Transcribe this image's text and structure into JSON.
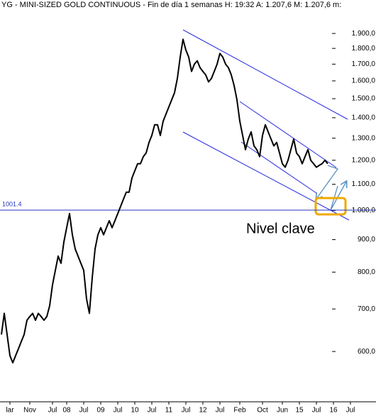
{
  "chart_data": {
    "type": "line",
    "title": "YG - MINI-SIZED GOLD CONTINUOUS - Fin de día 1 semanas H: 19:32 A: 1.207,6 M: 1.207,6 m:",
    "annotation": "Nivel clave",
    "log_scale": true,
    "hline": 1001.4,
    "categories": [
      null,
      null,
      null,
      "lar",
      null,
      null,
      null,
      null,
      null,
      null,
      "Nov",
      null,
      null,
      null,
      null,
      null,
      null,
      null,
      "Jul",
      null,
      null,
      null,
      null,
      "08",
      null,
      null,
      null,
      null,
      null,
      "Jul",
      null,
      null,
      null,
      null,
      null,
      "09",
      null,
      null,
      null,
      null,
      null,
      "Jul",
      null,
      null,
      null,
      null,
      null,
      "10",
      null,
      null,
      null,
      null,
      null,
      "Jul",
      null,
      null,
      null,
      null,
      null,
      "11",
      null,
      null,
      null,
      null,
      null,
      "Jul",
      null,
      null,
      null,
      null,
      null,
      "12",
      null,
      null,
      null,
      null,
      null,
      "Jul",
      null,
      null,
      null,
      null,
      null,
      null,
      "Feb",
      null,
      null,
      null,
      null,
      null,
      null,
      null,
      "Oct",
      null,
      null,
      null,
      null,
      null,
      null,
      "Jun",
      null,
      null,
      null,
      null,
      null,
      "15",
      null,
      null,
      null,
      null,
      null,
      "Jul",
      null,
      null,
      null,
      null,
      null,
      "16",
      null,
      null,
      null,
      null,
      null,
      "Jul",
      null
    ],
    "series": [
      {
        "color": "#000000",
        "values": [
          638,
          689,
          638,
          591,
          576,
          591,
          606,
          622,
          638,
          672,
          681,
          689,
          672,
          689,
          681,
          672,
          681,
          708,
          764,
          805,
          848,
          826,
          892,
          940,
          989,
          916,
          870,
          848,
          826,
          805,
          726,
          689,
          784,
          870,
          916,
          940,
          916,
          940,
          964,
          940,
          964,
          989,
          1015,
          1042,
          1069,
          1069,
          1125,
          1155,
          1185,
          1185,
          1216,
          1232,
          1280,
          1313,
          1365,
          1365,
          1313,
          1383,
          1419,
          1456,
          1494,
          1533,
          1614,
          1744,
          1860,
          1789,
          1744,
          1656,
          1700,
          1721,
          1678,
          1656,
          1635,
          1594,
          1614,
          1656,
          1700,
          1767,
          1744,
          1700,
          1678,
          1635,
          1573,
          1494,
          1383,
          1313,
          1247,
          1296,
          1330,
          1264,
          1247,
          1216,
          1313,
          1365,
          1330,
          1296,
          1264,
          1280,
          1232,
          1185,
          1170,
          1200,
          1247,
          1296,
          1232,
          1216,
          1185,
          1216,
          1247,
          1200,
          1185,
          1170,
          1178,
          1185,
          1200,
          1185,
          null,
          null,
          null,
          null,
          null,
          null,
          null,
          null,
          null
        ]
      }
    ],
    "ylim": [
      500,
      2145
    ],
    "yticks": [
      {
        "value": 1900,
        "label": "1.900,0"
      },
      {
        "value": 1800,
        "label": "1.800,0"
      },
      {
        "value": 1700,
        "label": "1.700,0"
      },
      {
        "value": 1600,
        "label": "1.600,0"
      },
      {
        "value": 1500,
        "label": "1.500,0"
      },
      {
        "value": 1400,
        "label": "1.400,0"
      },
      {
        "value": 1300,
        "label": "1.300,0"
      },
      {
        "value": 1200,
        "label": "1.200,0"
      },
      {
        "value": 1100,
        "label": "1.100,0"
      },
      {
        "value": 1000,
        "label": "1.000,0"
      },
      {
        "value": 900,
        "label": "900,0"
      },
      {
        "value": 800,
        "label": "800,0"
      },
      {
        "value": 700,
        "label": "700,0"
      },
      {
        "value": 600,
        "label": "600,0"
      }
    ]
  }
}
